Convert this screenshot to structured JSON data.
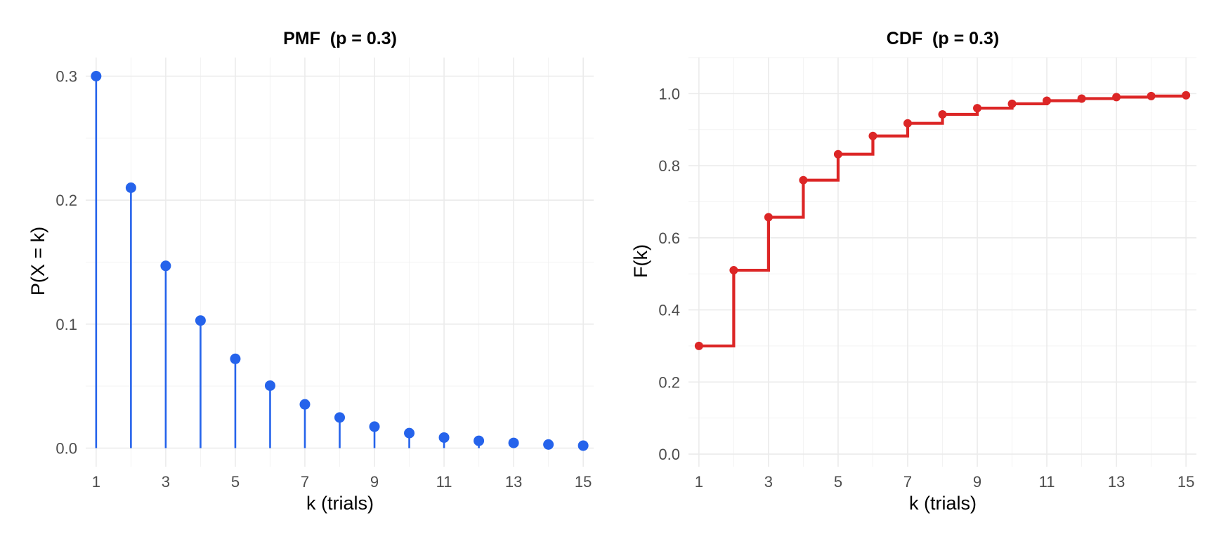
{
  "chart_data": [
    {
      "type": "stem",
      "title": "PMF  (p = 0.3)",
      "xlabel": "k (trials)",
      "ylabel": "P(X = k)",
      "xlim": [
        0.7,
        15.3
      ],
      "ylim": [
        -0.015,
        0.315
      ],
      "x_ticks": [
        1,
        3,
        5,
        7,
        9,
        11,
        13,
        15
      ],
      "y_ticks": [
        0.0,
        0.1,
        0.2,
        0.3
      ],
      "y_tick_labels": [
        "0.0",
        "0.1",
        "0.2",
        "0.3"
      ],
      "grid": true,
      "color": "#2563eb",
      "x": [
        1,
        2,
        3,
        4,
        5,
        6,
        7,
        8,
        9,
        10,
        11,
        12,
        13,
        14,
        15
      ],
      "values": [
        0.3,
        0.21,
        0.147,
        0.1029,
        0.072,
        0.0504,
        0.0353,
        0.0247,
        0.0173,
        0.0121,
        0.0085,
        0.0059,
        0.0042,
        0.0029,
        0.002
      ]
    },
    {
      "type": "step",
      "title": "CDF  (p = 0.3)",
      "xlabel": "k (trials)",
      "ylabel": "F(k)",
      "xlim": [
        0.7,
        15.3
      ],
      "ylim": [
        -0.035,
        1.1
      ],
      "x_ticks": [
        1,
        3,
        5,
        7,
        9,
        11,
        13,
        15
      ],
      "y_ticks": [
        0.0,
        0.2,
        0.4,
        0.6,
        0.8,
        1.0
      ],
      "y_tick_labels": [
        "0.0",
        "0.2",
        "0.4",
        "0.6",
        "0.8",
        "1.0"
      ],
      "grid": true,
      "color": "#dc2626",
      "x": [
        1,
        2,
        3,
        4,
        5,
        6,
        7,
        8,
        9,
        10,
        11,
        12,
        13,
        14,
        15
      ],
      "values": [
        0.3,
        0.51,
        0.657,
        0.7599,
        0.8319,
        0.8824,
        0.9176,
        0.9424,
        0.9596,
        0.9718,
        0.9802,
        0.9862,
        0.9903,
        0.9932,
        0.9953
      ]
    }
  ]
}
